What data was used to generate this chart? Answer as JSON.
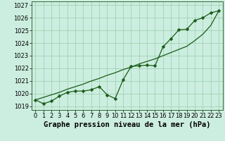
{
  "x": [
    0,
    1,
    2,
    3,
    4,
    5,
    6,
    7,
    8,
    9,
    10,
    11,
    12,
    13,
    14,
    15,
    16,
    17,
    18,
    19,
    20,
    21,
    22,
    23
  ],
  "y_data": [
    1019.5,
    1019.2,
    1019.4,
    1019.8,
    1020.1,
    1020.2,
    1020.2,
    1020.3,
    1020.55,
    1019.9,
    1019.6,
    1021.1,
    1022.15,
    1022.2,
    1022.25,
    1022.2,
    1023.7,
    1024.35,
    1025.05,
    1025.1,
    1025.8,
    1026.0,
    1026.4,
    1026.55
  ],
  "y_trend": [
    1019.5,
    1019.7,
    1019.9,
    1020.1,
    1020.35,
    1020.55,
    1020.75,
    1021.0,
    1021.2,
    1021.45,
    1021.65,
    1021.9,
    1022.1,
    1022.35,
    1022.55,
    1022.75,
    1023.0,
    1023.25,
    1023.5,
    1023.75,
    1024.2,
    1024.7,
    1025.4,
    1026.55
  ],
  "xlabel": "Graphe pression niveau de la mer (hPa)",
  "xlim": [
    -0.5,
    23.5
  ],
  "ylim": [
    1018.7,
    1027.3
  ],
  "yticks": [
    1019,
    1020,
    1021,
    1022,
    1023,
    1024,
    1025,
    1026,
    1027
  ],
  "xticks": [
    0,
    1,
    2,
    3,
    4,
    5,
    6,
    7,
    8,
    9,
    10,
    11,
    12,
    13,
    14,
    15,
    16,
    17,
    18,
    19,
    20,
    21,
    22,
    23
  ],
  "line_color": "#1a5c18",
  "bg_color": "#cceee0",
  "grid_color": "#99ccaa",
  "xlabel_fontsize": 7.5,
  "tick_fontsize": 6,
  "markersize": 2.5
}
